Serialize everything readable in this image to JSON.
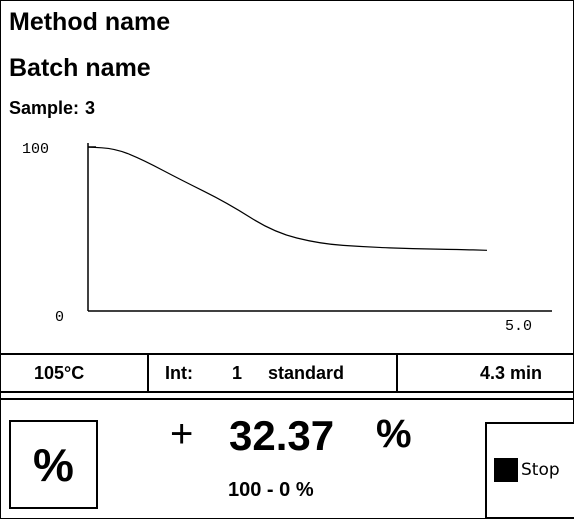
{
  "header": {
    "method_name": "Method name",
    "batch_name": "Batch name",
    "sample_label": "Sample:",
    "sample_number": "3"
  },
  "chart_data": {
    "type": "line",
    "y_ticks": [
      "100",
      "0"
    ],
    "x_ticks": [
      "5.0"
    ],
    "ylim": [
      0,
      100
    ],
    "xlim": [
      0,
      5.0
    ],
    "grid": false,
    "series": [
      {
        "x": [
          0,
          0.3,
          0.6,
          1.0,
          1.5,
          2.0,
          2.5,
          3.0,
          3.5,
          4.0,
          4.3
        ],
        "y": [
          100,
          99,
          92,
          80,
          66,
          48,
          41,
          39,
          38,
          37.5,
          37
        ]
      }
    ]
  },
  "status": {
    "temperature": "105°C",
    "interval_label": "Int:",
    "interval_value": "1",
    "mode": "standard",
    "elapsed": "4.3 min"
  },
  "result": {
    "sign": "+",
    "value": "32.37",
    "unit": "%",
    "range": "100 - 0 %"
  },
  "controls": {
    "unit_button_label": "%",
    "stop_label": "Stop"
  }
}
